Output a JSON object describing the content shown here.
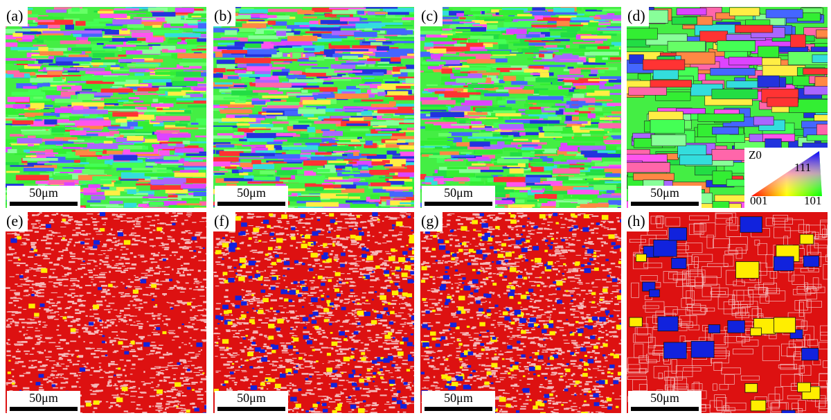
{
  "panels": [
    {
      "label": "(a)",
      "scale_bar": "50μm"
    },
    {
      "label": "(b)",
      "scale_bar": "50μm"
    },
    {
      "label": "(c)",
      "scale_bar": "50μm"
    },
    {
      "label": "(d)",
      "scale_bar": "50μm"
    },
    {
      "label": "(e)",
      "scale_bar": "50μm"
    },
    {
      "label": "(f)",
      "scale_bar": "50μm"
    },
    {
      "label": "(g)",
      "scale_bar": "50μm"
    },
    {
      "label": "(h)",
      "scale_bar": "50μm"
    }
  ],
  "legend": {
    "title": "Z0",
    "top": "111",
    "bottom_left": "001",
    "bottom_right": "101"
  }
}
